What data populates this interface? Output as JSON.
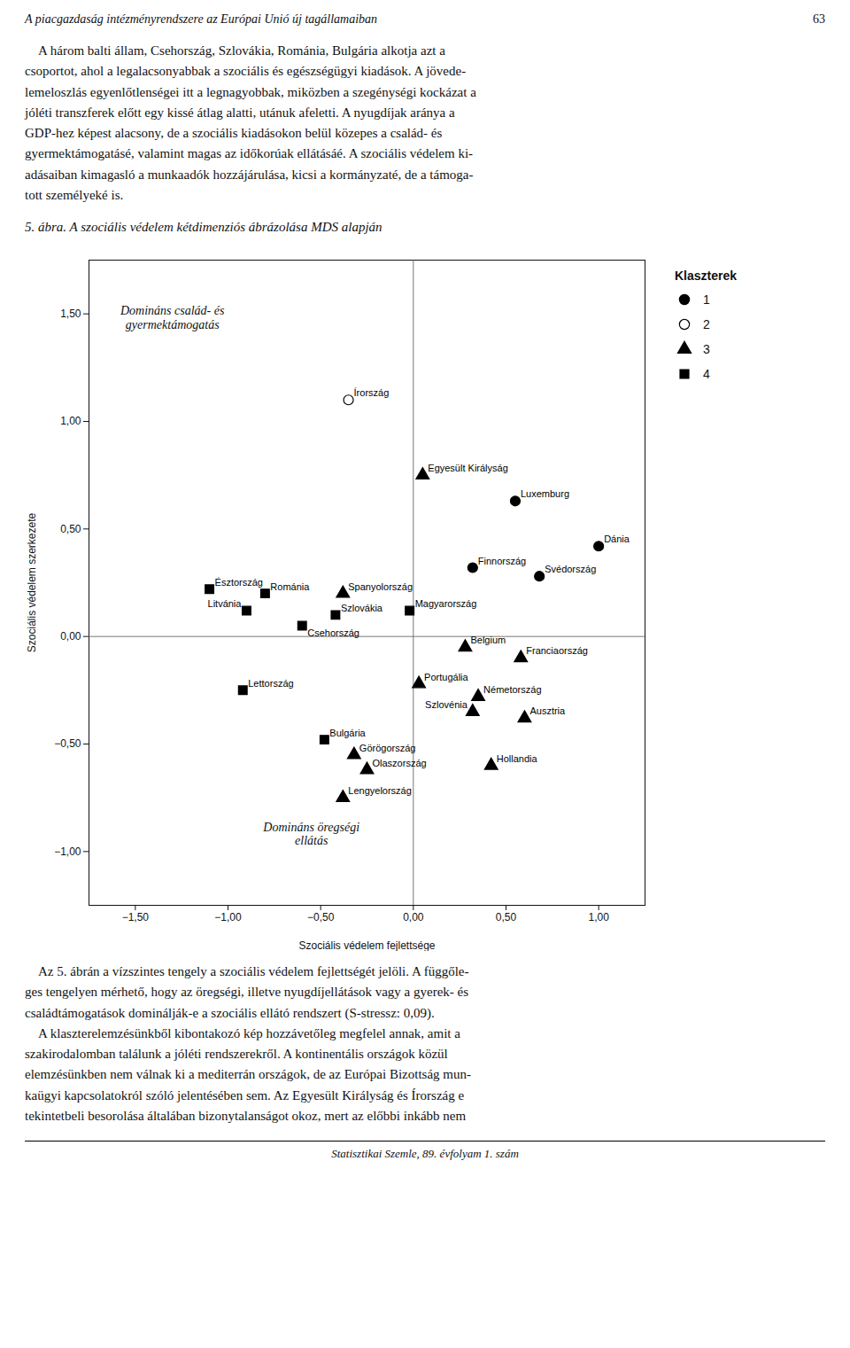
{
  "chart_data": {
    "type": "scatter",
    "title": "5. ábra. A szociális védelem kétdimenziós ábrázolása MDS alapján",
    "xlabel": "Szociális védelem fejlettsége",
    "ylabel": "Szociális védelem szerkezete",
    "xlim": [
      -1.75,
      1.25
    ],
    "ylim": [
      -1.25,
      1.75
    ],
    "xticks": [
      {
        "value": -1.5,
        "label": "−1,50"
      },
      {
        "value": -1.0,
        "label": "−1,00"
      },
      {
        "value": -0.5,
        "label": "−0,50"
      },
      {
        "value": 0.0,
        "label": "0,00"
      },
      {
        "value": 0.5,
        "label": "0,50"
      },
      {
        "value": 1.0,
        "label": "1,00"
      }
    ],
    "yticks": [
      {
        "value": -1.0,
        "label": "−1,00"
      },
      {
        "value": -0.5,
        "label": "−0,50"
      },
      {
        "value": 0.0,
        "label": "0,00"
      },
      {
        "value": 0.5,
        "label": "0,50"
      },
      {
        "value": 1.0,
        "label": "1,00"
      },
      {
        "value": 1.5,
        "label": "1,50"
      }
    ],
    "annotations": [
      "Domináns család- és\ngyermektámogatás",
      "Domináns öregségi\nellátás"
    ],
    "legend_title": "Klaszterek",
    "series": [
      {
        "name": "1",
        "marker": "circle",
        "color": "black"
      },
      {
        "name": "2",
        "marker": "circle",
        "color": "white"
      },
      {
        "name": "3",
        "marker": "triangle",
        "color": "black"
      },
      {
        "name": "4",
        "marker": "square",
        "color": "black"
      }
    ],
    "points": [
      {
        "name": "Írország",
        "x": -0.35,
        "y": 1.1,
        "series": "2"
      },
      {
        "name": "Egyesült Királyság",
        "x": 0.05,
        "y": 0.75,
        "series": "3"
      },
      {
        "name": "Luxemburg",
        "x": 0.55,
        "y": 0.63,
        "series": "1"
      },
      {
        "name": "Dánia",
        "x": 1.0,
        "y": 0.42,
        "series": "1"
      },
      {
        "name": "Finnország",
        "x": 0.32,
        "y": 0.32,
        "series": "1"
      },
      {
        "name": "Svédország",
        "x": 0.68,
        "y": 0.28,
        "series": "1"
      },
      {
        "name": "Észtország",
        "x": -1.1,
        "y": 0.22,
        "series": "4"
      },
      {
        "name": "Románia",
        "x": -0.8,
        "y": 0.2,
        "series": "4"
      },
      {
        "name": "Spanyolország",
        "x": -0.38,
        "y": 0.2,
        "series": "3"
      },
      {
        "name": "Litvánia",
        "x": -0.9,
        "y": 0.12,
        "series": "4"
      },
      {
        "name": "Szlovákia",
        "x": -0.42,
        "y": 0.1,
        "series": "4"
      },
      {
        "name": "Magyarország",
        "x": -0.02,
        "y": 0.12,
        "series": "4"
      },
      {
        "name": "Csehország",
        "x": -0.6,
        "y": 0.05,
        "series": "4"
      },
      {
        "name": "Belgium",
        "x": 0.28,
        "y": -0.05,
        "series": "3"
      },
      {
        "name": "Franciaország",
        "x": 0.58,
        "y": -0.1,
        "series": "3"
      },
      {
        "name": "Lettország",
        "x": -0.92,
        "y": -0.25,
        "series": "4"
      },
      {
        "name": "Portugália",
        "x": 0.03,
        "y": -0.22,
        "series": "3"
      },
      {
        "name": "Németország",
        "x": 0.35,
        "y": -0.28,
        "series": "3"
      },
      {
        "name": "Szlovénia",
        "x": 0.32,
        "y": -0.35,
        "series": "3"
      },
      {
        "name": "Ausztria",
        "x": 0.6,
        "y": -0.38,
        "series": "3"
      },
      {
        "name": "Bulgária",
        "x": -0.48,
        "y": -0.48,
        "series": "4"
      },
      {
        "name": "Görögország",
        "x": -0.32,
        "y": -0.55,
        "series": "3"
      },
      {
        "name": "Olaszország",
        "x": -0.25,
        "y": -0.62,
        "series": "3"
      },
      {
        "name": "Hollandia",
        "x": 0.42,
        "y": -0.6,
        "series": "3"
      },
      {
        "name": "Lengyelország",
        "x": -0.38,
        "y": -0.75,
        "series": "3"
      }
    ],
    "header": "A piacgazdaság intézményrendszere az Európai Unió új tagállamaiban",
    "page_number": "63",
    "body_above": "    A három balti állam, Csehország, Szlovákia, Románia, Bulgária alkotja azt a\ncsoportot, ahol a legalacsonyabbak a szociális és egészségügyi kiadások. A jövede-\nlemeloszlás egyenlőtlenségei itt a legnagyobbak, miközben a szegénységi kockázat a\njóléti transzferek előtt egy kissé átlag alatti, utánuk afeletti. A nyugdíjak aránya a\nGDP-hez képest alacsony, de a szociális kiadásokon belül közepes a család- és\ngyermektámogatásé, valamint magas az időkorúak ellátásáé. A szociális védelem ki-\nadásaiban kimagasló a munkaadók hozzájárulása, kicsi a kormányzaté, de a támoga-\ntott személyeké is.",
    "body_below": "    Az 5. ábrán a vízszintes tengely a szociális védelem fejlettségét jelöli. A függőle-\nges tengelyen mérhető, hogy az öregségi, illetve nyugdíjellátások vagy a gyerek- és\ncsaládtámogatások dominálják-e a szociális ellátó rendszert (S-stressz: 0,09).\n    A klaszterelemzésünkből kibontakozó kép hozzávetőleg megfelel annak, amit a\nszakirodalomban találunk a jóléti rendszerekről. A kontinentális országok közül\nelemzésünkben nem válnak ki a mediterrán országok, de az Európai Bizottság mun-\nkaügyi kapcsolatokról szóló jelentésében sem. Az Egyesült Királyság és Írország e\ntekintetbeli besorolása általában bizonytalanságot okoz, mert az előbbi inkább nem",
    "footer": "Statisztikai Szemle, 89. évfolyam 1. szám"
  }
}
